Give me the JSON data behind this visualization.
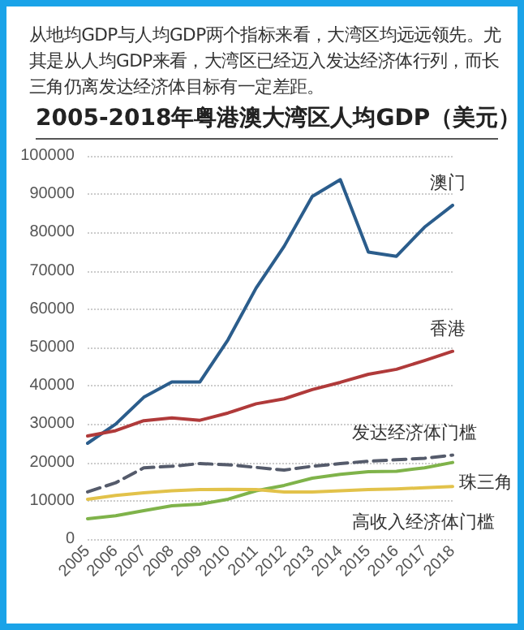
{
  "chart_data": {
    "type": "line",
    "subtitle": "从地均GDP与人均GDP两个指标来看，大湾区均远远领先。尤其是从人均GDP来看，大湾区已经迈入发达经济体行列，而长三角仍离发达经济体目标有一定差距。",
    "title": "2005-2018年粤港澳大湾区人均GDP（美元）",
    "categories": [
      "2005",
      "2006",
      "2007",
      "2008",
      "2009",
      "2010",
      "2011",
      "2012",
      "2013",
      "2014",
      "2015",
      "2016",
      "2017",
      "2018"
    ],
    "series": [
      {
        "name": "澳门",
        "color": "#2b5d8c",
        "values": [
          25000,
          30000,
          37000,
          41000,
          41000,
          52000,
          65500,
          76400,
          89400,
          93800,
          74900,
          73800,
          81400,
          87100
        ]
      },
      {
        "name": "香港",
        "color": "#b03a3a",
        "values": [
          26900,
          28300,
          30900,
          31600,
          31000,
          32900,
          35300,
          36600,
          39000,
          40900,
          43000,
          44300,
          46600,
          49000
        ]
      },
      {
        "name": "发达经济体门槛",
        "color": "#555b6b",
        "line_style": "dashed",
        "values": [
          12300,
          14700,
          18600,
          19000,
          19700,
          19400,
          18700,
          18000,
          19000,
          19700,
          20300,
          20700,
          21100,
          21900
        ]
      },
      {
        "name": "珠三角",
        "color": "#7fb34a",
        "values": [
          5300,
          6100,
          7400,
          8700,
          9100,
          10400,
          12600,
          14000,
          15900,
          16900,
          17600,
          17700,
          18600,
          20000
        ]
      },
      {
        "name": "高收入经济体门槛",
        "color": "#e2c24a",
        "values": [
          10400,
          11400,
          12100,
          12600,
          12900,
          13000,
          12900,
          12300,
          12300,
          12600,
          12900,
          13100,
          13400,
          13700
        ]
      }
    ],
    "ylim": [
      0,
      100000
    ],
    "yticks": [
      0,
      10000,
      20000,
      30000,
      40000,
      50000,
      60000,
      70000,
      80000,
      90000,
      100000
    ],
    "grid": "y",
    "legend": false,
    "line_style": "solid"
  }
}
